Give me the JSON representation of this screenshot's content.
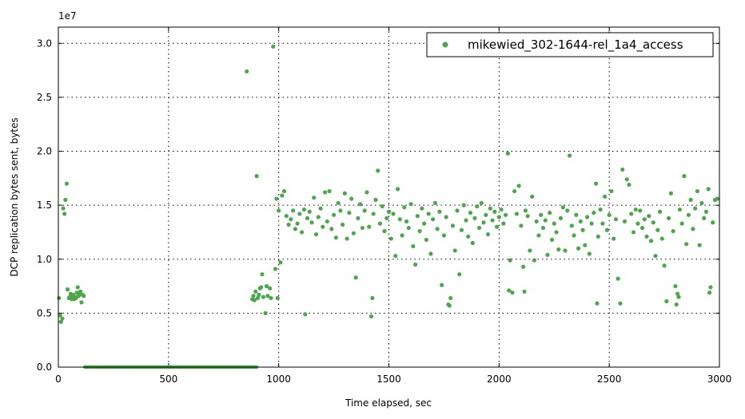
{
  "chart_data": {
    "type": "scatter",
    "title": "",
    "xlabel": "Time elapsed, sec",
    "ylabel": "DCP replication bytes sent, bytes",
    "offset_text": "1e7",
    "xlim": [
      0,
      3000
    ],
    "ylim": [
      0,
      3.15
    ],
    "x_ticks": [
      0,
      500,
      1000,
      1500,
      2000,
      2500,
      3000
    ],
    "x_tick_labels": [
      "0",
      "500",
      "1000",
      "1500",
      "2000",
      "2500",
      "3000"
    ],
    "y_ticks": [
      0,
      0.5,
      1.0,
      1.5,
      2.0,
      2.5,
      3.0
    ],
    "y_tick_labels": [
      "0.0",
      "0.5",
      "1.0",
      "1.5",
      "2.0",
      "2.5",
      "3.0"
    ],
    "grid": true,
    "legend_position": "top-right",
    "color": "#4ca64c",
    "series": [
      {
        "name": "mikewied_302-1644-rel_1a4_access",
        "points": [
          [
            3,
            0.64
          ],
          [
            8,
            0.48
          ],
          [
            12,
            0.42
          ],
          [
            18,
            0.45
          ],
          [
            22,
            1.47
          ],
          [
            28,
            1.42
          ],
          [
            32,
            1.55
          ],
          [
            38,
            1.7
          ],
          [
            42,
            0.72
          ],
          [
            48,
            0.64
          ],
          [
            52,
            0.65
          ],
          [
            56,
            0.68
          ],
          [
            60,
            0.63
          ],
          [
            64,
            0.66
          ],
          [
            68,
            0.67
          ],
          [
            72,
            0.63
          ],
          [
            76,
            0.65
          ],
          [
            80,
            0.64
          ],
          [
            84,
            0.69
          ],
          [
            88,
            0.74
          ],
          [
            92,
            0.66
          ],
          [
            96,
            0.68
          ],
          [
            100,
            0.7
          ],
          [
            105,
            0.6
          ],
          [
            110,
            0.67
          ],
          [
            115,
            0.66
          ],
          [
            855,
            2.74
          ],
          [
            880,
            0.63
          ],
          [
            885,
            0.66
          ],
          [
            890,
            0.62
          ],
          [
            895,
            0.7
          ],
          [
            900,
            1.77
          ],
          [
            905,
            0.64
          ],
          [
            910,
            0.67
          ],
          [
            915,
            0.73
          ],
          [
            920,
            0.74
          ],
          [
            925,
            0.86
          ],
          [
            930,
            0.65
          ],
          [
            940,
            0.5
          ],
          [
            945,
            0.75
          ],
          [
            950,
            0.66
          ],
          [
            960,
            0.73
          ],
          [
            965,
            0.64
          ],
          [
            975,
            2.97
          ],
          [
            985,
            0.91
          ],
          [
            990,
            1.56
          ],
          [
            995,
            0.64
          ],
          [
            1000,
            1.45
          ],
          [
            1008,
            0.97
          ],
          [
            1015,
            1.59
          ],
          [
            1025,
            1.63
          ],
          [
            1035,
            1.4
          ],
          [
            1045,
            1.32
          ],
          [
            1055,
            1.37
          ],
          [
            1065,
            1.45
          ],
          [
            1075,
            1.28
          ],
          [
            1085,
            1.33
          ],
          [
            1095,
            1.42
          ],
          [
            1105,
            1.25
          ],
          [
            1115,
            1.46
          ],
          [
            1120,
            0.49
          ],
          [
            1130,
            1.38
          ],
          [
            1140,
            1.44
          ],
          [
            1150,
            1.34
          ],
          [
            1160,
            1.57
          ],
          [
            1170,
            1.23
          ],
          [
            1180,
            1.39
          ],
          [
            1190,
            1.47
          ],
          [
            1200,
            1.3
          ],
          [
            1210,
            1.62
          ],
          [
            1220,
            1.35
          ],
          [
            1230,
            1.63
          ],
          [
            1240,
            1.28
          ],
          [
            1250,
            1.41
          ],
          [
            1260,
            1.2
          ],
          [
            1270,
            1.52
          ],
          [
            1280,
            1.45
          ],
          [
            1290,
            1.32
          ],
          [
            1300,
            1.61
          ],
          [
            1310,
            1.19
          ],
          [
            1320,
            1.43
          ],
          [
            1330,
            1.56
          ],
          [
            1340,
            1.24
          ],
          [
            1350,
            0.83
          ],
          [
            1360,
            1.38
          ],
          [
            1370,
            1.51
          ],
          [
            1380,
            1.29
          ],
          [
            1390,
            1.45
          ],
          [
            1400,
            1.62
          ],
          [
            1410,
            1.3
          ],
          [
            1420,
            0.47
          ],
          [
            1425,
            0.64
          ],
          [
            1430,
            1.42
          ],
          [
            1440,
            1.55
          ],
          [
            1450,
            1.82
          ],
          [
            1460,
            1.33
          ],
          [
            1470,
            1.49
          ],
          [
            1480,
            1.26
          ],
          [
            1490,
            1.38
          ],
          [
            1500,
            1.44
          ],
          [
            1510,
            1.19
          ],
          [
            1520,
            1.42
          ],
          [
            1530,
            1.03
          ],
          [
            1540,
            1.65
          ],
          [
            1550,
            1.37
          ],
          [
            1560,
            1.22
          ],
          [
            1570,
            1.48
          ],
          [
            1580,
            1.35
          ],
          [
            1590,
            1.29
          ],
          [
            1600,
            1.51
          ],
          [
            1610,
            1.12
          ],
          [
            1620,
            0.95
          ],
          [
            1630,
            1.4
          ],
          [
            1640,
            1.26
          ],
          [
            1650,
            1.47
          ],
          [
            1660,
            1.33
          ],
          [
            1670,
            1.18
          ],
          [
            1680,
            1.42
          ],
          [
            1690,
            1.05
          ],
          [
            1700,
            1.37
          ],
          [
            1710,
            1.52
          ],
          [
            1720,
            1.28
          ],
          [
            1730,
            1.44
          ],
          [
            1740,
            0.76
          ],
          [
            1750,
            1.22
          ],
          [
            1760,
            1.39
          ],
          [
            1770,
            0.58
          ],
          [
            1775,
            0.57
          ],
          [
            1780,
            0.64
          ],
          [
            1790,
            1.31
          ],
          [
            1800,
            1.08
          ],
          [
            1810,
            1.45
          ],
          [
            1820,
            0.86
          ],
          [
            1830,
            1.27
          ],
          [
            1840,
            1.5
          ],
          [
            1850,
            1.36
          ],
          [
            1860,
            1.21
          ],
          [
            1870,
            1.43
          ],
          [
            1880,
            1.15
          ],
          [
            1890,
            1.38
          ],
          [
            1900,
            1.49
          ],
          [
            1910,
            1.29
          ],
          [
            1920,
            1.52
          ],
          [
            1930,
            1.34
          ],
          [
            1940,
            1.41
          ],
          [
            1950,
            1.23
          ],
          [
            1960,
            1.47
          ],
          [
            1970,
            1.36
          ],
          [
            1980,
            1.44
          ],
          [
            1990,
            1.3
          ],
          [
            2000,
            1.39
          ],
          [
            2010,
            1.46
          ],
          [
            2020,
            1.33
          ],
          [
            2030,
            1.41
          ],
          [
            2040,
            1.98
          ],
          [
            2045,
            0.71
          ],
          [
            2050,
            0.99
          ],
          [
            2060,
            0.69
          ],
          [
            2070,
            1.63
          ],
          [
            2080,
            1.42
          ],
          [
            2090,
            1.68
          ],
          [
            2100,
            1.31
          ],
          [
            2110,
            0.93
          ],
          [
            2115,
            0.7
          ],
          [
            2120,
            1.45
          ],
          [
            2130,
            1.4
          ],
          [
            2140,
            1.08
          ],
          [
            2150,
            1.58
          ],
          [
            2160,
            0.99
          ],
          [
            2170,
            1.35
          ],
          [
            2180,
            1.22
          ],
          [
            2190,
            1.41
          ],
          [
            2200,
            1.29
          ],
          [
            2210,
            1.36
          ],
          [
            2220,
            1.04
          ],
          [
            2230,
            1.43
          ],
          [
            2240,
            1.18
          ],
          [
            2250,
            1.33
          ],
          [
            2260,
            1.25
          ],
          [
            2270,
            1.09
          ],
          [
            2280,
            1.38
          ],
          [
            2290,
            1.48
          ],
          [
            2300,
            1.08
          ],
          [
            2310,
            1.45
          ],
          [
            2320,
            1.96
          ],
          [
            2330,
            1.31
          ],
          [
            2340,
            1.22
          ],
          [
            2350,
            1.41
          ],
          [
            2360,
            1.1
          ],
          [
            2370,
            1.35
          ],
          [
            2380,
            1.27
          ],
          [
            2390,
            1.13
          ],
          [
            2400,
            1.39
          ],
          [
            2410,
            1.05
          ],
          [
            2420,
            1.33
          ],
          [
            2430,
            1.43
          ],
          [
            2440,
            1.7
          ],
          [
            2445,
            0.59
          ],
          [
            2450,
            1.21
          ],
          [
            2460,
            1.46
          ],
          [
            2470,
            1.33
          ],
          [
            2480,
            1.58
          ],
          [
            2490,
            1.27
          ],
          [
            2500,
            1.41
          ],
          [
            2510,
            1.63
          ],
          [
            2520,
            1.19
          ],
          [
            2530,
            1.37
          ],
          [
            2540,
            0.82
          ],
          [
            2550,
            0.59
          ],
          [
            2560,
            1.83
          ],
          [
            2570,
            1.35
          ],
          [
            2580,
            1.74
          ],
          [
            2590,
            1.69
          ],
          [
            2600,
            1.42
          ],
          [
            2610,
            1.25
          ],
          [
            2620,
            1.46
          ],
          [
            2630,
            1.33
          ],
          [
            2640,
            1.45
          ],
          [
            2650,
            1.29
          ],
          [
            2660,
            1.37
          ],
          [
            2670,
            1.21
          ],
          [
            2680,
            1.4
          ],
          [
            2690,
            1.17
          ],
          [
            2700,
            1.34
          ],
          [
            2710,
            1.03
          ],
          [
            2720,
            1.27
          ],
          [
            2730,
            1.44
          ],
          [
            2740,
            1.19
          ],
          [
            2750,
            0.94
          ],
          [
            2760,
            0.61
          ],
          [
            2770,
            1.38
          ],
          [
            2780,
            1.61
          ],
          [
            2790,
            1.26
          ],
          [
            2800,
            0.75
          ],
          [
            2805,
            0.58
          ],
          [
            2810,
            0.68
          ],
          [
            2815,
            0.65
          ],
          [
            2820,
            1.46
          ],
          [
            2830,
            1.33
          ],
          [
            2840,
            1.77
          ],
          [
            2850,
            1.14
          ],
          [
            2860,
            1.41
          ],
          [
            2870,
            1.55
          ],
          [
            2880,
            1.28
          ],
          [
            2890,
            1.47
          ],
          [
            2900,
            1.63
          ],
          [
            2910,
            1.13
          ],
          [
            2920,
            1.52
          ],
          [
            2930,
            1.38
          ],
          [
            2940,
            1.44
          ],
          [
            2950,
            1.65
          ],
          [
            2955,
            0.69
          ],
          [
            2960,
            0.74
          ],
          [
            2970,
            1.34
          ],
          [
            2980,
            1.55
          ],
          [
            2990,
            1.56
          ]
        ]
      }
    ]
  }
}
